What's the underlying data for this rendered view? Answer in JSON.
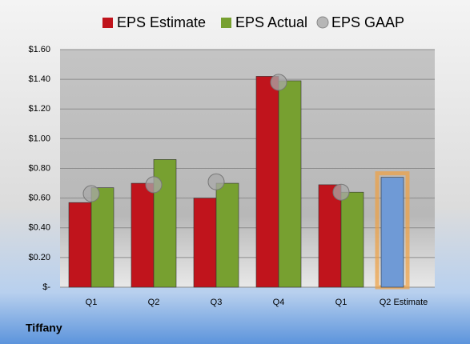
{
  "chart_data": {
    "type": "bar",
    "company": "Tiffany",
    "categories": [
      "Q1",
      "Q2",
      "Q3",
      "Q4",
      "Q1",
      "Q2 Estimate"
    ],
    "series": [
      {
        "name": "EPS Estimate",
        "color": "#c0141c",
        "values": [
          0.57,
          0.7,
          0.6,
          1.42,
          0.69,
          0.74
        ]
      },
      {
        "name": "EPS Actual",
        "color": "#77a030",
        "values": [
          0.67,
          0.86,
          0.7,
          1.39,
          0.64,
          null
        ]
      },
      {
        "name": "EPS GAAP",
        "color": "#a8a8a8",
        "marker": "circle",
        "values": [
          0.63,
          0.69,
          0.71,
          1.38,
          0.64,
          null
        ]
      }
    ],
    "highlight": {
      "index": 5,
      "color": "#6f9ad6",
      "glow": "#f0a040"
    },
    "ylim": [
      0,
      1.6
    ],
    "yticks": [
      {
        "value": 0,
        "label": "$-"
      },
      {
        "value": 0.2,
        "label": "$0.20"
      },
      {
        "value": 0.4,
        "label": "$0.40"
      },
      {
        "value": 0.6,
        "label": "$0.60"
      },
      {
        "value": 0.8,
        "label": "$0.80"
      },
      {
        "value": 1.0,
        "label": "$1.00"
      },
      {
        "value": 1.2,
        "label": "$1.20"
      },
      {
        "value": 1.4,
        "label": "$1.40"
      },
      {
        "value": 1.6,
        "label": "$1.60"
      }
    ],
    "grid": true
  }
}
